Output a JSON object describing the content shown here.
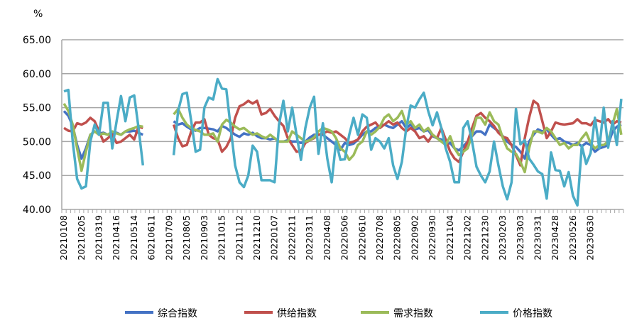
{
  "chart_data": {
    "type": "line",
    "title": "",
    "ylabel": "%",
    "xlabel": "",
    "ylim": [
      40,
      65
    ],
    "yticks": [
      "40.00",
      "45.00",
      "50.00",
      "55.00",
      "60.00",
      "65.00"
    ],
    "grid": true,
    "legend_position": "bottom",
    "x_tick_every": 4,
    "x_tick_labels": [
      "20210108",
      "20210205",
      "20210319",
      "20210416",
      "20210514",
      "60210611",
      "20210709",
      "20210805",
      "20210903",
      "20211015",
      "20211112",
      "20211210",
      "20220107",
      "20220211",
      "20220311",
      "20220408",
      "20220506",
      "20220610",
      "20220708",
      "20220805",
      "20220902",
      "20220930",
      "20221104",
      "20221202",
      "20221230",
      "20230203",
      "20230303",
      "20230331",
      "20230428",
      "20230526",
      "20230630"
    ],
    "series": [
      {
        "name": "综合指数",
        "color": "#4472c4",
        "values": [
          54.5,
          53.8,
          52.3,
          49.5,
          47.5,
          49.0,
          51.0,
          51.5,
          51.2,
          51.3,
          51.0,
          51.2,
          51.3,
          51.0,
          51.5,
          51.5,
          51.6,
          51.3,
          51.0,
          null,
          null,
          null,
          null,
          null,
          null,
          53.0,
          52.5,
          52.7,
          52.2,
          51.8,
          51.6,
          52.0,
          52.0,
          51.9,
          51.8,
          51.5,
          52.3,
          52.0,
          51.5,
          51.0,
          50.7,
          51.2,
          51.0,
          51.3,
          50.8,
          50.5,
          50.5,
          50.3,
          50.5,
          50.0,
          50.0,
          50.2,
          50.0,
          50.0,
          49.8,
          50.0,
          50.6,
          51.0,
          51.0,
          51.0,
          50.5,
          50.0,
          49.5,
          48.8,
          49.8,
          49.5,
          49.7,
          50.3,
          51.0,
          51.5,
          51.5,
          52.0,
          52.3,
          52.5,
          52.2,
          52.0,
          52.5,
          53.0,
          52.0,
          52.5,
          51.8,
          52.0,
          51.5,
          51.7,
          50.8,
          50.5,
          50.3,
          49.5,
          49.8,
          49.0,
          48.7,
          49.3,
          50.0,
          50.8,
          51.5,
          51.5,
          51.0,
          52.5,
          52.0,
          51.5,
          50.8,
          50.0,
          49.5,
          49.2,
          48.5,
          47.5,
          50.0,
          51.0,
          51.8,
          51.5,
          51.8,
          51.0,
          50.3,
          50.5,
          50.0,
          49.8,
          49.5,
          49.8,
          49.3,
          49.8,
          49.5,
          48.5,
          49.0,
          49.2,
          49.5,
          51.5,
          52.2,
          52.5
        ]
      },
      {
        "name": "供给指数",
        "color": "#c0504d",
        "values": [
          52.0,
          51.6,
          51.5,
          52.7,
          52.5,
          52.8,
          53.5,
          53.0,
          51.5,
          50.0,
          50.5,
          51.0,
          49.8,
          50.0,
          50.5,
          51.0,
          50.3,
          52.2,
          52.0,
          null,
          null,
          null,
          null,
          null,
          null,
          52.5,
          50.5,
          49.3,
          49.5,
          51.5,
          52.8,
          52.8,
          53.3,
          51.0,
          50.5,
          50.3,
          48.5,
          49.2,
          50.5,
          53.5,
          55.2,
          55.5,
          56.0,
          55.6,
          56.0,
          54.0,
          54.2,
          54.8,
          53.8,
          53.0,
          52.3,
          50.5,
          49.5,
          48.5,
          48.6,
          49.8,
          50.2,
          50.5,
          51.0,
          51.2,
          51.5,
          51.3,
          51.5,
          51.0,
          50.5,
          49.8,
          50.0,
          50.3,
          51.5,
          52.2,
          52.5,
          52.8,
          52.0,
          52.5,
          53.0,
          52.5,
          52.8,
          52.0,
          51.5,
          52.0,
          51.5,
          50.5,
          50.8,
          50.0,
          51.0,
          50.5,
          52.0,
          50.3,
          48.5,
          47.5,
          47.0,
          48.5,
          50.0,
          52.0,
          53.8,
          54.2,
          53.5,
          53.0,
          52.3,
          51.3,
          50.7,
          50.5,
          49.5,
          48.0,
          46.5,
          50.5,
          53.5,
          56.0,
          55.5,
          53.0,
          50.5,
          51.5,
          52.8,
          52.6,
          52.5,
          52.6,
          52.7,
          53.3,
          52.7,
          52.7,
          52.4,
          53.2,
          53.0,
          52.8,
          53.3,
          52.5,
          53.0,
          52.8
        ]
      },
      {
        "name": "需求指数",
        "color": "#9bbb59",
        "values": [
          55.6,
          54.5,
          52.5,
          49.0,
          45.7,
          48.5,
          51.0,
          51.5,
          51.0,
          51.2,
          51.0,
          51.5,
          51.2,
          51.0,
          51.5,
          51.8,
          52.0,
          52.3,
          52.2,
          null,
          null,
          null,
          null,
          null,
          null,
          54.0,
          54.8,
          53.5,
          52.5,
          52.0,
          51.7,
          51.5,
          51.0,
          51.0,
          51.2,
          50.0,
          52.5,
          53.2,
          52.8,
          52.2,
          51.8,
          52.0,
          51.5,
          51.0,
          51.2,
          50.8,
          50.5,
          51.0,
          50.5,
          50.0,
          50.0,
          50.0,
          51.5,
          51.0,
          50.5,
          50.0,
          50.2,
          50.6,
          51.5,
          52.0,
          51.8,
          51.5,
          50.5,
          49.0,
          48.5,
          47.3,
          48.0,
          49.5,
          50.0,
          51.5,
          51.0,
          51.5,
          52.2,
          53.5,
          54.0,
          53.0,
          53.5,
          54.5,
          52.5,
          53.0,
          52.0,
          52.5,
          51.5,
          52.0,
          51.0,
          50.5,
          50.0,
          49.5,
          50.8,
          49.0,
          48.0,
          48.5,
          49.0,
          51.0,
          53.5,
          53.5,
          52.5,
          54.3,
          53.0,
          52.5,
          50.5,
          49.0,
          48.5,
          48.2,
          47.0,
          45.5,
          49.0,
          51.5,
          51.5,
          51.2,
          52.0,
          51.5,
          50.5,
          49.5,
          49.8,
          49.0,
          49.5,
          49.5,
          50.5,
          51.3,
          49.8,
          49.0,
          49.5,
          49.5,
          50.0,
          52.5,
          54.8,
          51.0
        ]
      },
      {
        "name": "价格指数",
        "color": "#4bacc6",
        "values": [
          57.4,
          57.6,
          50.0,
          44.5,
          43.1,
          43.4,
          50.0,
          52.5,
          51.0,
          55.7,
          55.7,
          49.0,
          53.0,
          56.7,
          53.0,
          56.5,
          56.8,
          52.0,
          46.5,
          null,
          null,
          null,
          null,
          null,
          null,
          48.0,
          54.5,
          57.0,
          57.2,
          53.0,
          48.5,
          48.8,
          55.0,
          56.5,
          56.2,
          59.2,
          57.8,
          57.7,
          52.0,
          46.5,
          44.0,
          43.3,
          45.0,
          49.4,
          48.5,
          44.3,
          44.3,
          44.3,
          44.0,
          52.5,
          56.0,
          51.5,
          55.0,
          51.0,
          47.3,
          52.0,
          55.0,
          56.6,
          48.2,
          52.7,
          47.5,
          44.0,
          50.0,
          47.3,
          47.4,
          51.0,
          53.5,
          51.0,
          54.0,
          53.5,
          48.8,
          50.5,
          50.0,
          49.0,
          50.5,
          46.5,
          44.5,
          47.0,
          52.0,
          55.3,
          55.0,
          56.2,
          57.2,
          54.5,
          52.4,
          54.3,
          52.0,
          49.0,
          47.0,
          44.0,
          44.0,
          52.0,
          53.0,
          50.0,
          46.3,
          45.0,
          44.0,
          45.6,
          50.0,
          46.5,
          43.4,
          41.5,
          44.0,
          54.8,
          49.6,
          50.2,
          47.5,
          46.6,
          45.6,
          45.2,
          41.6,
          48.4,
          45.8,
          45.7,
          43.4,
          45.5,
          42.0,
          40.6,
          49.4,
          46.7,
          48.3,
          53.5,
          49.0,
          55.0,
          49.1,
          53.0,
          49.5,
          56.3
        ]
      }
    ]
  }
}
